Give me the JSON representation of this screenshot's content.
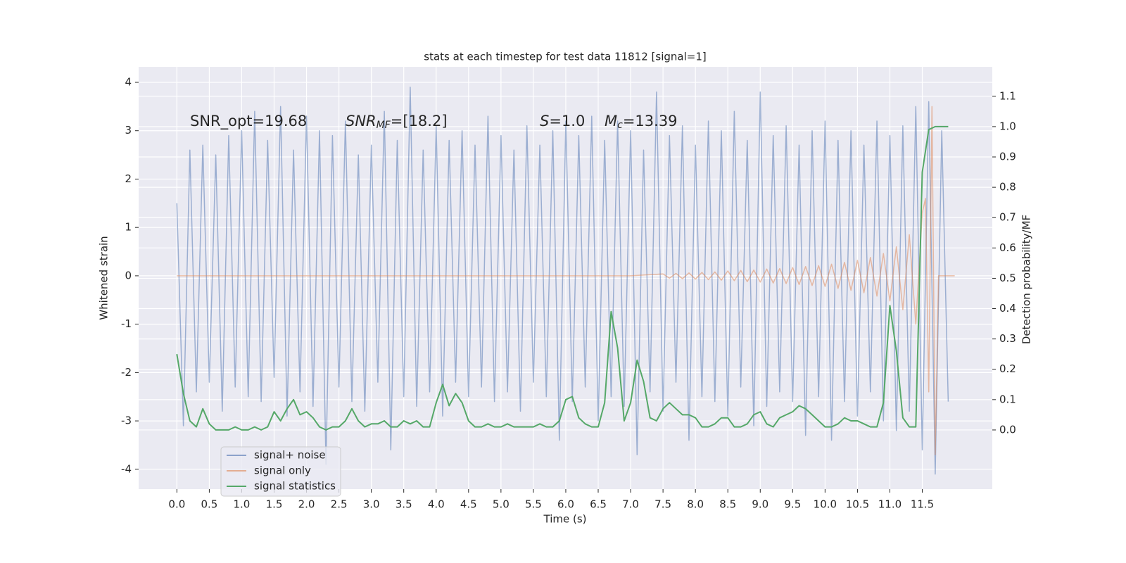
{
  "chart_data": {
    "type": "line",
    "title": "stats at each timestep for test data 11812 [signal=1]",
    "xlabel": "Time (s)",
    "ylabel": "Whitened strain",
    "y2label": "Detection probability/MF",
    "annotations": [
      {
        "text": "SNR_opt=19.68"
      },
      {
        "main": "SNR",
        "sub": "MF",
        "rest": "=[18.2]"
      },
      {
        "main": "S",
        "rest": "=1.0"
      },
      {
        "main": "M",
        "sub": "c",
        "rest": "=13.39"
      }
    ],
    "xlim": [
      -0.59,
      12.58
    ],
    "ylim": [
      -4.41,
      4.32
    ],
    "y2lim": [
      -0.195,
      1.197
    ],
    "xticks": [
      {
        "value": 0,
        "label": "0.0"
      },
      0.5,
      {
        "value": 1,
        "label": "1.0"
      },
      1.5,
      {
        "value": 2,
        "label": "2.0"
      },
      2.5,
      {
        "value": 3,
        "label": "3.0"
      },
      3.5,
      {
        "value": 4,
        "label": "4.0"
      },
      4.5,
      {
        "value": 5,
        "label": "5.0"
      },
      5.5,
      {
        "value": 6,
        "label": "6.0"
      },
      6.5,
      {
        "value": 7,
        "label": "7.0"
      },
      7.5,
      {
        "value": 8,
        "label": "8.0"
      },
      8.5,
      {
        "value": 9,
        "label": "9.0"
      },
      9.5,
      {
        "value": 10,
        "label": "10.0"
      },
      10.5,
      {
        "value": 11,
        "label": "11.0"
      },
      11.5
    ],
    "yticks": [
      -4,
      -3,
      -2,
      -1,
      0,
      1,
      2,
      3,
      4
    ],
    "y2ticks": [
      {
        "value": 0,
        "label": "0.0"
      },
      0.1,
      0.2,
      0.3,
      0.4,
      0.5,
      0.6,
      0.7,
      0.8,
      0.9,
      {
        "value": 1,
        "label": "1.0"
      },
      1.1
    ],
    "grid": true,
    "legend": "lower left",
    "x": [
      0.0,
      0.1,
      0.2,
      0.3,
      0.4,
      0.5,
      0.6,
      0.7,
      0.8,
      0.9,
      1.0,
      1.1,
      1.2,
      1.3,
      1.4,
      1.5,
      1.6,
      1.7,
      1.8,
      1.9,
      2.0,
      2.1,
      2.2,
      2.3,
      2.4,
      2.5,
      2.6,
      2.7,
      2.8,
      2.9,
      3.0,
      3.1,
      3.2,
      3.3,
      3.4,
      3.5,
      3.6,
      3.7,
      3.8,
      3.9,
      4.0,
      4.1,
      4.2,
      4.3,
      4.4,
      4.5,
      4.6,
      4.7,
      4.8,
      4.9,
      5.0,
      5.1,
      5.2,
      5.3,
      5.4,
      5.5,
      5.6,
      5.7,
      5.8,
      5.9,
      6.0,
      6.1,
      6.2,
      6.3,
      6.4,
      6.5,
      6.6,
      6.7,
      6.8,
      6.9,
      7.0,
      7.1,
      7.2,
      7.3,
      7.4,
      7.5,
      7.6,
      7.7,
      7.8,
      7.9,
      8.0,
      8.1,
      8.2,
      8.3,
      8.4,
      8.5,
      8.6,
      8.7,
      8.8,
      8.9,
      9.0,
      9.1,
      9.2,
      9.3,
      9.4,
      9.5,
      9.6,
      9.7,
      9.8,
      9.9,
      10.0,
      10.1,
      10.2,
      10.3,
      10.4,
      10.5,
      10.6,
      10.7,
      10.8,
      10.9,
      11.0,
      11.1,
      11.2,
      11.3,
      11.4,
      11.5,
      11.6,
      11.7,
      11.8,
      11.9
    ],
    "series": [
      {
        "name": "signal+ noise",
        "color": "#4c72b0",
        "values": [
          1.5,
          -3.1,
          2.6,
          -2.4,
          2.7,
          -2.2,
          2.5,
          -2.8,
          2.9,
          -2.3,
          3.0,
          -2.5,
          3.4,
          -2.6,
          2.8,
          -2.1,
          3.5,
          -2.9,
          2.6,
          -2.4,
          3.3,
          -2.7,
          3.0,
          -3.9,
          2.9,
          -2.3,
          3.2,
          -2.6,
          2.5,
          -2.8,
          2.7,
          -2.2,
          3.4,
          -3.6,
          2.8,
          -2.5,
          3.9,
          -2.7,
          2.6,
          -2.4,
          3.1,
          -2.9,
          2.8,
          -2.2,
          3.0,
          -2.5,
          2.7,
          -2.3,
          3.3,
          -2.6,
          2.9,
          -2.4,
          2.6,
          -2.8,
          3.1,
          -2.2,
          2.7,
          -2.5,
          3.0,
          -3.4,
          3.2,
          -2.6,
          2.9,
          -2.3,
          3.3,
          -3.0,
          2.8,
          -2.5,
          3.2,
          -2.7,
          3.0,
          -3.7,
          2.6,
          -2.4,
          3.8,
          -2.8,
          2.9,
          -2.2,
          3.1,
          -3.4,
          2.7,
          -2.5,
          3.2,
          -2.6,
          3.0,
          -2.9,
          3.4,
          -2.3,
          2.8,
          -3.1,
          3.8,
          -2.7,
          2.9,
          -2.4,
          3.1,
          -2.6,
          2.7,
          -3.3,
          3.0,
          -2.5,
          3.2,
          -3.4,
          2.8,
          -2.6,
          3.0,
          -2.9,
          2.7,
          -2.4,
          3.2,
          -3.0,
          2.9,
          -3.2,
          3.1,
          -2.8,
          3.5,
          -3.6,
          3.6,
          -4.1,
          3.0,
          -2.6
        ]
      },
      {
        "name": "signal only",
        "color": "#dd8452",
        "x": [
          0.0,
          7.0,
          7.5,
          7.6,
          7.7,
          7.8,
          7.9,
          8.0,
          8.1,
          8.2,
          8.3,
          8.4,
          8.5,
          8.6,
          8.7,
          8.8,
          8.9,
          9.0,
          9.1,
          9.2,
          9.3,
          9.4,
          9.5,
          9.6,
          9.7,
          9.8,
          9.9,
          10.0,
          10.1,
          10.2,
          10.3,
          10.4,
          10.5,
          10.6,
          10.7,
          10.8,
          10.9,
          11.0,
          11.1,
          11.2,
          11.3,
          11.4,
          11.5,
          11.55,
          11.6,
          11.65,
          11.7,
          11.75,
          12.0
        ],
        "values": [
          0,
          0,
          0.04,
          -0.05,
          0.05,
          -0.06,
          0.06,
          -0.07,
          0.07,
          -0.08,
          0.08,
          -0.09,
          0.1,
          -0.1,
          0.11,
          -0.12,
          0.12,
          -0.13,
          0.14,
          -0.15,
          0.15,
          -0.16,
          0.17,
          -0.18,
          0.19,
          -0.2,
          0.21,
          -0.22,
          0.24,
          -0.26,
          0.28,
          -0.3,
          0.32,
          -0.35,
          0.38,
          -0.42,
          0.46,
          -0.52,
          0.6,
          -0.7,
          0.85,
          -1.0,
          1.3,
          1.6,
          -2.4,
          3.5,
          -3.7,
          0,
          0
        ]
      },
      {
        "name": "signal statistics",
        "color": "#55a868",
        "axis": "y2",
        "values": [
          0.25,
          0.12,
          0.03,
          0.01,
          0.07,
          0.02,
          0.0,
          0.0,
          0.0,
          0.01,
          0.0,
          0.0,
          0.01,
          0.0,
          0.01,
          0.06,
          0.03,
          0.07,
          0.1,
          0.05,
          0.06,
          0.04,
          0.01,
          0.0,
          0.01,
          0.01,
          0.03,
          0.07,
          0.03,
          0.01,
          0.02,
          0.02,
          0.03,
          0.01,
          0.01,
          0.03,
          0.02,
          0.03,
          0.01,
          0.01,
          0.09,
          0.15,
          0.08,
          0.12,
          0.09,
          0.03,
          0.01,
          0.01,
          0.02,
          0.01,
          0.01,
          0.02,
          0.01,
          0.01,
          0.01,
          0.01,
          0.02,
          0.01,
          0.01,
          0.03,
          0.1,
          0.11,
          0.04,
          0.02,
          0.01,
          0.01,
          0.09,
          0.39,
          0.27,
          0.03,
          0.09,
          0.23,
          0.16,
          0.04,
          0.03,
          0.07,
          0.09,
          0.07,
          0.05,
          0.05,
          0.04,
          0.01,
          0.01,
          0.02,
          0.04,
          0.04,
          0.01,
          0.01,
          0.02,
          0.05,
          0.06,
          0.02,
          0.01,
          0.04,
          0.05,
          0.06,
          0.08,
          0.07,
          0.05,
          0.03,
          0.01,
          0.01,
          0.02,
          0.04,
          0.03,
          0.03,
          0.02,
          0.01,
          0.01,
          0.09,
          0.41,
          0.26,
          0.04,
          0.01,
          0.01,
          0.85,
          0.99,
          1.0,
          1.0,
          1.0
        ]
      }
    ]
  }
}
